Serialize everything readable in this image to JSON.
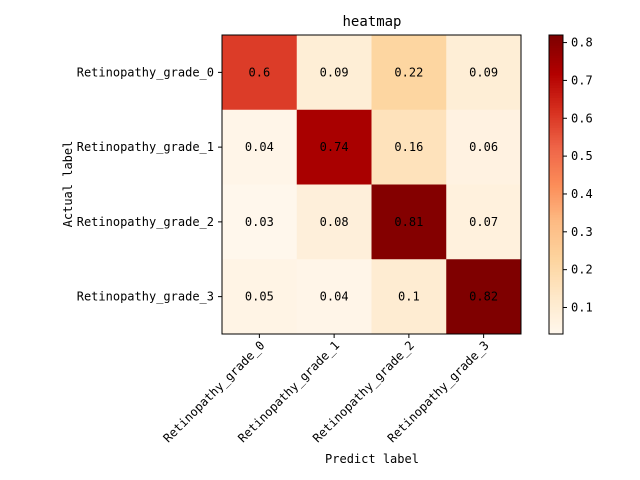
{
  "chart_data": {
    "type": "heatmap",
    "title": "heatmap",
    "xlabel": "Predict label",
    "ylabel": "Actual label",
    "x_categories": [
      "Retinopathy_grade_0",
      "Retinopathy_grade_1",
      "Retinopathy_grade_2",
      "Retinopathy_grade_3"
    ],
    "y_categories": [
      "Retinopathy_grade_0",
      "Retinopathy_grade_1",
      "Retinopathy_grade_2",
      "Retinopathy_grade_3"
    ],
    "values": [
      [
        0.6,
        0.09,
        0.22,
        0.09
      ],
      [
        0.04,
        0.74,
        0.16,
        0.06
      ],
      [
        0.03,
        0.08,
        0.81,
        0.07
      ],
      [
        0.05,
        0.04,
        0.1,
        0.82
      ]
    ],
    "value_labels": [
      [
        "0.6",
        "0.09",
        "0.22",
        "0.09"
      ],
      [
        "0.04",
        "0.74",
        "0.16",
        "0.06"
      ],
      [
        "0.03",
        "0.08",
        "0.81",
        "0.07"
      ],
      [
        "0.05",
        "0.04",
        "0.1",
        "0.82"
      ]
    ],
    "colormap": "OrRd",
    "color_range": [
      0.03,
      0.82
    ],
    "colorbar_ticks": [
      0.1,
      0.2,
      0.3,
      0.4,
      0.5,
      0.6,
      0.7,
      0.8
    ],
    "colorbar_tick_labels": [
      "0.1",
      "0.2",
      "0.3",
      "0.4",
      "0.5",
      "0.6",
      "0.7",
      "0.8"
    ],
    "colorbar_position": "right",
    "grid": false
  }
}
